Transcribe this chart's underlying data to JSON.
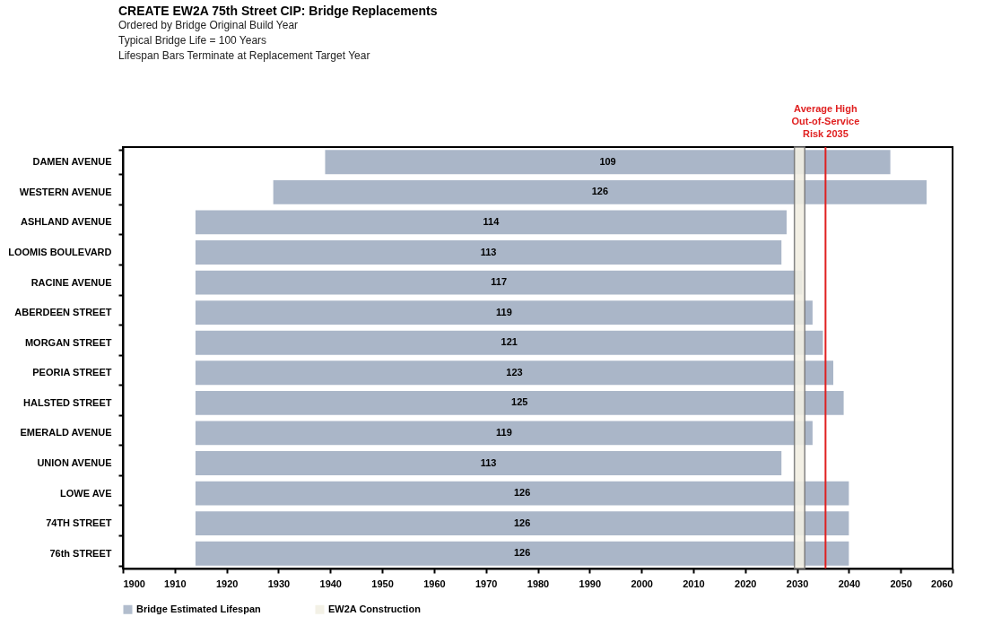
{
  "chart_data": {
    "type": "bar",
    "orientation": "horizontal",
    "title": "CREATE EW2A 75th Street CIP: Bridge Replacements",
    "subtitle": "Ordered by Bridge Original Build Year\nTypical Bridge Life = 100 Years\nLifespan Bars Terminate at Replacement Target Year",
    "categories": [
      "DAMEN AVENUE",
      "WESTERN AVENUE",
      "ASHLAND AVENUE",
      "LOOMIS BOULEVARD",
      "RACINE AVENUE",
      "ABERDEEN STREET",
      "MORGAN STREET",
      "PEORIA STREET",
      "HALSTED STREET",
      "EMERALD AVENUE",
      "UNION AVENUE",
      "LOWE AVE",
      "74TH STREET",
      "76th STREET"
    ],
    "series": [
      {
        "name": "Bridge Estimated Lifespan",
        "color": "#aab6c8",
        "values": [
          109,
          126,
          114,
          113,
          117,
          119,
          121,
          123,
          125,
          119,
          113,
          126,
          126,
          126
        ],
        "base": [
          1939,
          1929,
          1914,
          1914,
          1914,
          1914,
          1914,
          1914,
          1914,
          1914,
          1914,
          1914,
          1914,
          1914
        ]
      }
    ],
    "data_labels": true,
    "xlim": [
      1900,
      2060
    ],
    "xticks": [
      1900,
      1910,
      1920,
      1930,
      1940,
      1950,
      1960,
      1970,
      1980,
      1990,
      2000,
      2010,
      2020,
      2030,
      2040,
      2050,
      2060
    ],
    "bands": [
      {
        "axis": "x",
        "from": 2029.5,
        "to": 2031.5,
        "label": "EW2A Construction",
        "color": "#f2efe3"
      }
    ],
    "ref_lines": [
      {
        "axis": "x",
        "value": 2035.5,
        "label": "Average High Out-of-Service Risk 2035",
        "color": "#e02020",
        "line_style": "solid"
      }
    ],
    "grid": false,
    "legend": "bottom"
  }
}
